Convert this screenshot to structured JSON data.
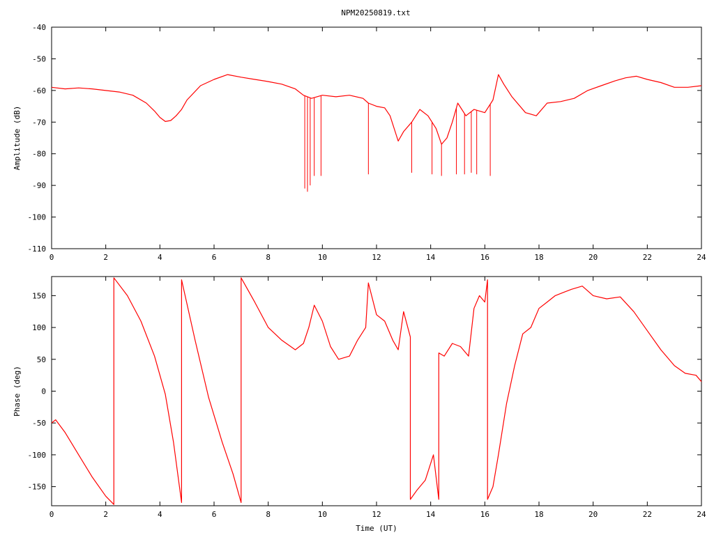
{
  "title": "NPM20250819.txt",
  "colors": {
    "trace": "#ff0000",
    "axes": "#000000",
    "background": "#ffffff"
  },
  "chart_data": [
    {
      "type": "line",
      "ylabel": "Amplitude (dB)",
      "xlim": [
        0,
        24
      ],
      "ylim": [
        -110,
        -40
      ],
      "xticks": [
        0,
        2,
        4,
        6,
        8,
        10,
        12,
        14,
        16,
        18,
        20,
        22,
        24
      ],
      "yticks": [
        -40,
        -50,
        -60,
        -70,
        -80,
        -90,
        -100,
        -110
      ],
      "grid": false,
      "legend": "none",
      "series": [
        {
          "x": [
            0,
            0.5,
            1,
            1.5,
            2,
            2.5,
            3,
            3.5,
            3.8,
            4.0,
            4.2,
            4.4,
            4.6,
            4.8,
            5.0,
            5.5,
            6.0,
            6.5,
            7.0,
            7.5,
            8.0,
            8.5,
            9.0,
            9.3,
            9.6,
            10.0,
            10.5,
            11.0,
            11.5,
            11.7,
            12.0,
            12.3,
            12.5,
            12.8,
            13.0,
            13.3,
            13.6,
            13.9,
            14.2,
            14.4,
            14.6,
            14.8,
            15.0,
            15.3,
            15.6,
            16.0,
            16.3,
            16.5,
            16.7,
            17.0,
            17.5,
            17.9,
            18.3,
            18.8,
            19.3,
            19.8,
            20.3,
            20.8,
            21.2,
            21.6,
            22.0,
            22.5,
            23.0,
            23.5,
            24.0
          ],
          "y": [
            -59,
            -59.5,
            -59.2,
            -59.5,
            -60,
            -60.5,
            -61.5,
            -64,
            -66.5,
            -68.5,
            -69.8,
            -69.5,
            -68,
            -66,
            -63,
            -58.5,
            -56.5,
            -55,
            -55.8,
            -56.5,
            -57.2,
            -58,
            -59.5,
            -61.5,
            -62.5,
            -61.5,
            -62,
            -61.5,
            -62.5,
            -64,
            -65,
            -65.5,
            -68,
            -76,
            -73,
            -70,
            -66,
            -68,
            -72,
            -77,
            -75,
            -70,
            -64,
            -68,
            -66,
            -67,
            -63,
            -55,
            -58,
            -62,
            -67,
            -68,
            -64,
            -63.5,
            -62.5,
            -60,
            -58.5,
            -57,
            -56,
            -55.5,
            -56.5,
            -57.5,
            -59,
            -59,
            -58.5
          ]
        }
      ],
      "spikes": [
        {
          "x": 9.35,
          "y": -91
        },
        {
          "x": 9.45,
          "y": -92
        },
        {
          "x": 9.55,
          "y": -90
        },
        {
          "x": 9.7,
          "y": -87
        },
        {
          "x": 9.95,
          "y": -87
        },
        {
          "x": 11.7,
          "y": -86.5
        },
        {
          "x": 13.3,
          "y": -86
        },
        {
          "x": 14.05,
          "y": -86.5
        },
        {
          "x": 14.4,
          "y": -87
        },
        {
          "x": 14.95,
          "y": -86.5
        },
        {
          "x": 15.25,
          "y": -86.5
        },
        {
          "x": 15.5,
          "y": -86
        },
        {
          "x": 15.7,
          "y": -86.5
        },
        {
          "x": 16.2,
          "y": -87
        }
      ]
    },
    {
      "type": "line",
      "xlabel": "Time (UT)",
      "ylabel": "Phase (deg)",
      "xlim": [
        0,
        24
      ],
      "ylim": [
        -180,
        180
      ],
      "xticks": [
        0,
        2,
        4,
        6,
        8,
        10,
        12,
        14,
        16,
        18,
        20,
        22,
        24
      ],
      "yticks": [
        150,
        100,
        50,
        0,
        -50,
        -100,
        -150
      ],
      "grid": false,
      "legend": "none",
      "series": [
        {
          "x": [
            0,
            0.15,
            0.5,
            1.0,
            1.5,
            2.0,
            2.3,
            2.3,
            2.8,
            3.3,
            3.8,
            4.2,
            4.5,
            4.8,
            4.8,
            5.3,
            5.8,
            6.3,
            6.7,
            7.0,
            7.0,
            7.5,
            8.0,
            8.5,
            9.0,
            9.3,
            9.5,
            9.7,
            10.0,
            10.3,
            10.6,
            11.0,
            11.3,
            11.6,
            11.7,
            12.0,
            12.3,
            12.6,
            12.8,
            13.0,
            13.25,
            13.25,
            13.5,
            13.8,
            14.1,
            14.3,
            14.3,
            14.5,
            14.8,
            15.1,
            15.4,
            15.6,
            15.8,
            16.0,
            16.1,
            16.1,
            16.3,
            16.5,
            16.8,
            17.1,
            17.4,
            17.7,
            18.0,
            18.3,
            18.6,
            18.9,
            19.2,
            19.6,
            20.0,
            20.5,
            21.0,
            21.5,
            22.0,
            22.5,
            23.0,
            23.4,
            23.8,
            24.0
          ],
          "y": [
            -50,
            -45,
            -65,
            -100,
            -135,
            -165,
            -178,
            178,
            150,
            110,
            55,
            -5,
            -80,
            -175,
            175,
            80,
            -10,
            -80,
            -130,
            -175,
            178,
            140,
            100,
            80,
            65,
            75,
            100,
            135,
            110,
            70,
            50,
            55,
            80,
            100,
            170,
            120,
            110,
            80,
            65,
            125,
            85,
            -170,
            -155,
            -140,
            -100,
            -170,
            60,
            55,
            75,
            70,
            55,
            130,
            150,
            140,
            175,
            -170,
            -150,
            -100,
            -20,
            40,
            90,
            100,
            130,
            140,
            150,
            155,
            160,
            165,
            150,
            145,
            148,
            125,
            95,
            65,
            40,
            28,
            25,
            15
          ]
        }
      ]
    }
  ]
}
